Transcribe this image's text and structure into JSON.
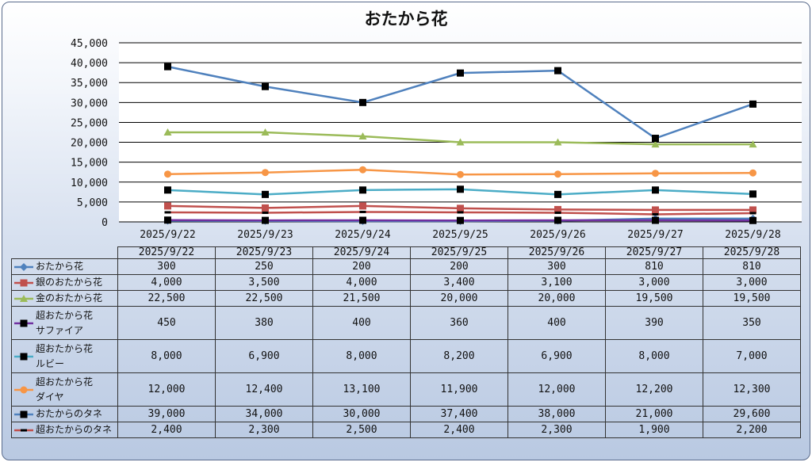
{
  "colors": {
    "hana": "#4f81bd",
    "gin": "#c0504d",
    "kin": "#9bbb59",
    "sapphire": "#7030a0",
    "ruby": "#4bacc6",
    "diamond": "#f79646",
    "tane": "#4f81bd",
    "chotane": "#c0504d"
  },
  "chart_data": {
    "type": "line",
    "title": "おたから花",
    "categories": [
      "2025/9/22",
      "2025/9/23",
      "2025/9/24",
      "2025/9/25",
      "2025/9/26",
      "2025/9/27",
      "2025/9/28"
    ],
    "ylim": [
      0,
      45000
    ],
    "yticks": [
      "0",
      "5,000",
      "10,000",
      "15,000",
      "20,000",
      "25,000",
      "30,000",
      "35,000",
      "40,000",
      "45,000"
    ],
    "grid": true,
    "legend": "data table below chart",
    "series": [
      {
        "name": "おたから花",
        "label_lines": [
          "おたから花"
        ],
        "values": [
          300,
          250,
          200,
          200,
          300,
          810,
          810
        ],
        "display": [
          "300",
          "250",
          "200",
          "200",
          "300",
          "810",
          "810"
        ],
        "marker": "diamond",
        "color": "#4f81bd",
        "line_color": "#4f81bd"
      },
      {
        "name": "銀のおたから花",
        "label_lines": [
          "銀のおたから花"
        ],
        "values": [
          4000,
          3500,
          4000,
          3400,
          3100,
          3000,
          3000
        ],
        "display": [
          "4,000",
          "3,500",
          "4,000",
          "3,400",
          "3,100",
          "3,000",
          "3,000"
        ],
        "marker": "square",
        "color": "#c0504d",
        "line_color": "#c0504d"
      },
      {
        "name": "金のおたから花",
        "label_lines": [
          "金のおたから花"
        ],
        "values": [
          22500,
          22500,
          21500,
          20000,
          20000,
          19500,
          19500
        ],
        "display": [
          "22,500",
          "22,500",
          "21,500",
          "20,000",
          "20,000",
          "19,500",
          "19,500"
        ],
        "marker": "triangle",
        "color": "#9bbb59",
        "line_color": "#9bbb59"
      },
      {
        "name": "超おたから花サファイア",
        "label_lines": [
          "超おたから花",
          "サファイア"
        ],
        "values": [
          450,
          380,
          400,
          360,
          400,
          390,
          350
        ],
        "display": [
          "450",
          "380",
          "400",
          "360",
          "400",
          "390",
          "350"
        ],
        "marker": "square",
        "color": "#000000",
        "line_color": "#7030a0"
      },
      {
        "name": "超おたから花ルビー",
        "label_lines": [
          "超おたから花",
          "ルビー"
        ],
        "values": [
          8000,
          6900,
          8000,
          8200,
          6900,
          8000,
          7000
        ],
        "display": [
          "8,000",
          "6,900",
          "8,000",
          "8,200",
          "6,900",
          "8,000",
          "7,000"
        ],
        "marker": "square",
        "color": "#000000",
        "line_color": "#4bacc6"
      },
      {
        "name": "超おたから花ダイヤ",
        "label_lines": [
          "超おたから花",
          "ダイヤ"
        ],
        "values": [
          12000,
          12400,
          13100,
          11900,
          12000,
          12200,
          12300
        ],
        "display": [
          "12,000",
          "12,400",
          "13,100",
          "11,900",
          "12,000",
          "12,200",
          "12,300"
        ],
        "marker": "circle",
        "color": "#f79646",
        "line_color": "#f79646"
      },
      {
        "name": "おたからのタネ",
        "label_lines": [
          "おたからのタネ"
        ],
        "values": [
          39000,
          34000,
          30000,
          37400,
          38000,
          21000,
          29600
        ],
        "display": [
          "39,000",
          "34,000",
          "30,000",
          "37,400",
          "38,000",
          "21,000",
          "29,600"
        ],
        "marker": "square",
        "color": "#000000",
        "line_color": "#4f81bd"
      },
      {
        "name": "超おたからのタネ",
        "label_lines": [
          "超おたからのタネ"
        ],
        "values": [
          2400,
          2300,
          2500,
          2400,
          2300,
          1900,
          2200
        ],
        "display": [
          "2,400",
          "2,300",
          "2,500",
          "2,400",
          "2,300",
          "1,900",
          "2,200"
        ],
        "marker": "dash",
        "color": "#000000",
        "line_color": "#c0504d"
      }
    ]
  }
}
